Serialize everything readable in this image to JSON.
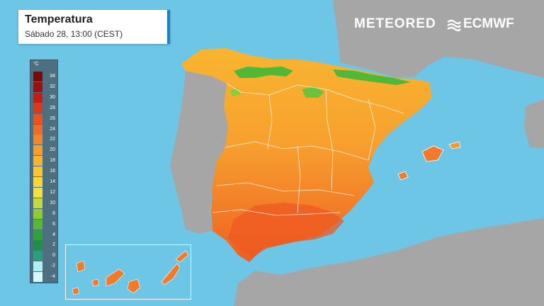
{
  "header": {
    "title": "Temperatura",
    "subtitle": "Sábado 28, 13:00 (CEST)"
  },
  "legend": {
    "unit": "°C",
    "steps": [
      {
        "label": "34",
        "color": "#7a0a0a"
      },
      {
        "label": "32",
        "color": "#9e1010"
      },
      {
        "label": "30",
        "color": "#c41d14"
      },
      {
        "label": "28",
        "color": "#e0361a"
      },
      {
        "label": "26",
        "color": "#f0521f"
      },
      {
        "label": "24",
        "color": "#f26b25"
      },
      {
        "label": "22",
        "color": "#f5852b"
      },
      {
        "label": "20",
        "color": "#f79d2e"
      },
      {
        "label": "18",
        "color": "#f9b32e"
      },
      {
        "label": "16",
        "color": "#fbc62f"
      },
      {
        "label": "14",
        "color": "#fbd633"
      },
      {
        "label": "12",
        "color": "#f3e23a"
      },
      {
        "label": "10",
        "color": "#c8da3a"
      },
      {
        "label": "8",
        "color": "#8fcb36"
      },
      {
        "label": "6",
        "color": "#56b935"
      },
      {
        "label": "4",
        "color": "#2ea33a"
      },
      {
        "label": "2",
        "color": "#1f8f4a"
      },
      {
        "label": "0",
        "color": "#2a9f7c"
      },
      {
        "label": "-2",
        "color": "#aef0f4"
      },
      {
        "label": "-4",
        "color": "#d9f8fb"
      }
    ]
  },
  "branding": {
    "meteored": "METEORED",
    "ecmwf": "ECMWF"
  },
  "colors": {
    "sea": "#6ec6e6",
    "land_other": "#a6a6a6",
    "border": "#ffffff"
  }
}
